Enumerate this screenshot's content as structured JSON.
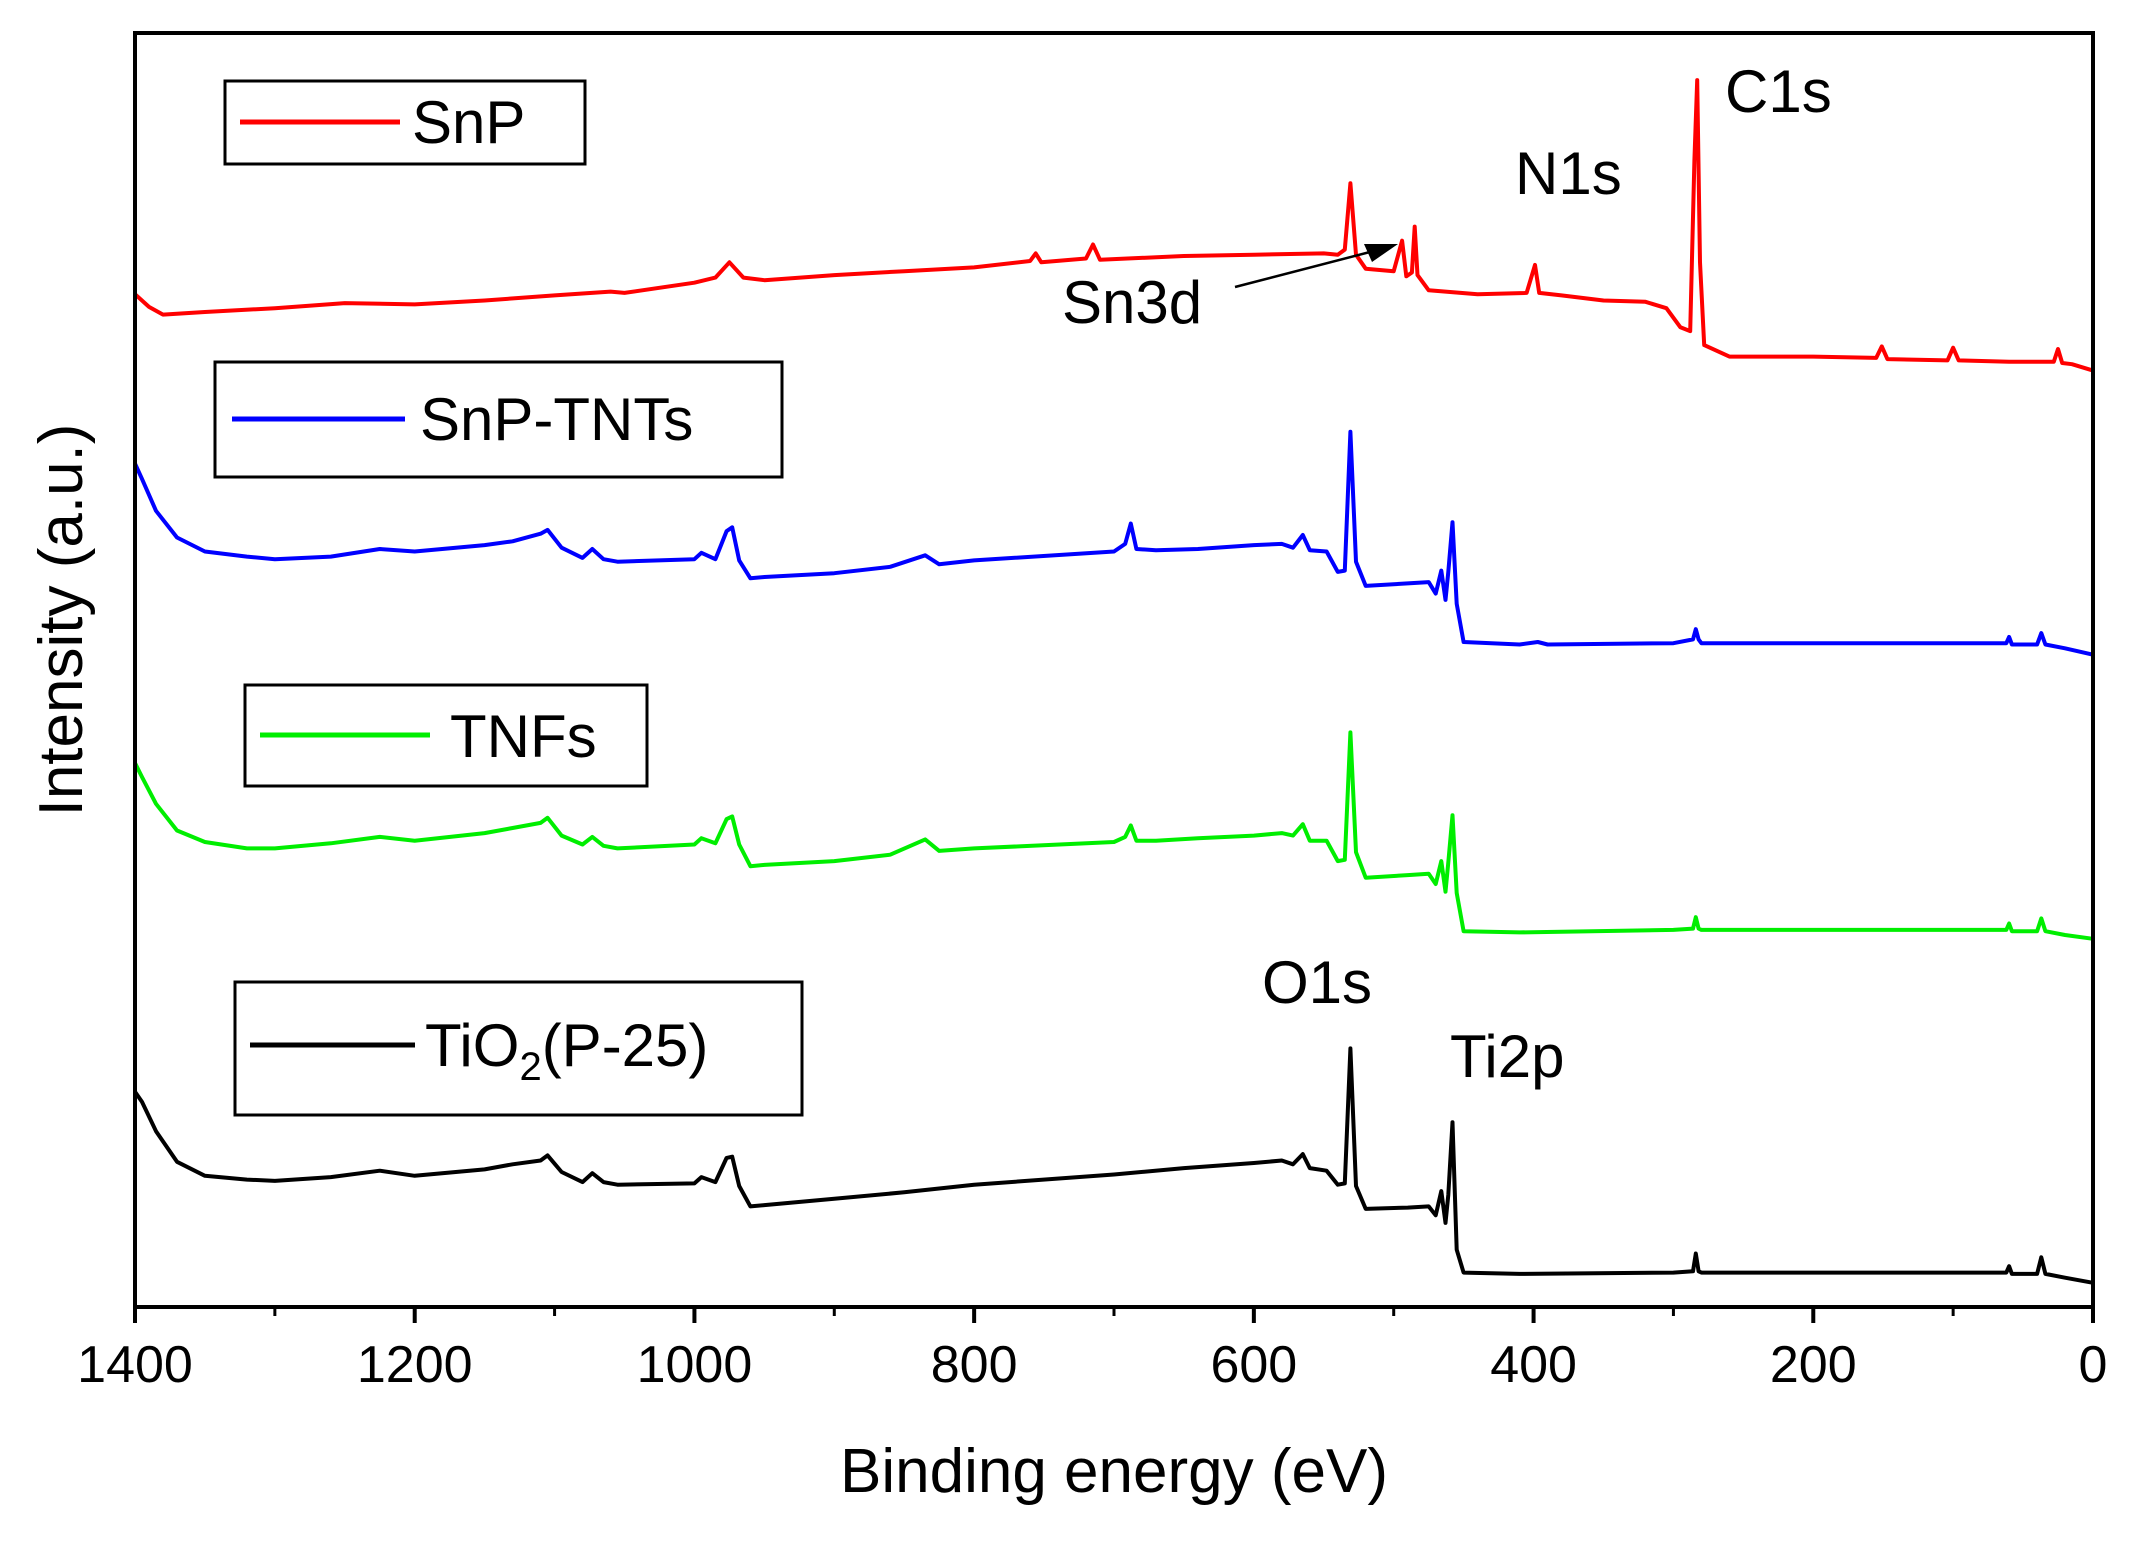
{
  "chart_data": {
    "type": "line",
    "title": "",
    "xlabel": "Binding energy (eV)",
    "ylabel": "Intensity (a.u.)",
    "xlim": [
      1400,
      0
    ],
    "x_reversed": true,
    "x_ticks": [
      1400,
      1200,
      1000,
      800,
      600,
      400,
      200,
      0
    ],
    "x_tick_labels": [
      "1400",
      "1200",
      "1000",
      "800",
      "600",
      "400",
      "200",
      "0"
    ],
    "y_ticks_shown": false,
    "grid": false,
    "ylim": [
      0,
      100
    ],
    "series": [
      {
        "name": "SnP",
        "color": "#ff0000",
        "points": [
          [
            1400,
            79.5
          ],
          [
            1390,
            78.5
          ],
          [
            1380,
            77.9
          ],
          [
            1350,
            78.1
          ],
          [
            1300,
            78.4
          ],
          [
            1250,
            78.8
          ],
          [
            1200,
            78.7
          ],
          [
            1150,
            79.0
          ],
          [
            1100,
            79.4
          ],
          [
            1060,
            79.7
          ],
          [
            1050,
            79.6
          ],
          [
            1000,
            80.4
          ],
          [
            985,
            80.8
          ],
          [
            975,
            82.0
          ],
          [
            965,
            80.8
          ],
          [
            950,
            80.6
          ],
          [
            900,
            81.0
          ],
          [
            850,
            81.3
          ],
          [
            800,
            81.6
          ],
          [
            760,
            82.1
          ],
          [
            756,
            82.7
          ],
          [
            752,
            82.0
          ],
          [
            720,
            82.3
          ],
          [
            715,
            83.4
          ],
          [
            710,
            82.2
          ],
          [
            650,
            82.5
          ],
          [
            600,
            82.6
          ],
          [
            550,
            82.7
          ],
          [
            540,
            82.6
          ],
          [
            535,
            83.0
          ],
          [
            531,
            88.2
          ],
          [
            527,
            82.6
          ],
          [
            520,
            81.5
          ],
          [
            500,
            81.3
          ],
          [
            494,
            83.7
          ],
          [
            491,
            80.9
          ],
          [
            487,
            81.2
          ],
          [
            485,
            84.8
          ],
          [
            483,
            81.0
          ],
          [
            475,
            79.8
          ],
          [
            440,
            79.5
          ],
          [
            405,
            79.6
          ],
          [
            399,
            81.8
          ],
          [
            396,
            79.6
          ],
          [
            380,
            79.4
          ],
          [
            350,
            79.0
          ],
          [
            320,
            78.9
          ],
          [
            305,
            78.4
          ],
          [
            295,
            76.9
          ],
          [
            288,
            76.6
          ],
          [
            285,
            90.0
          ],
          [
            283,
            96.3
          ],
          [
            281,
            82.0
          ],
          [
            278,
            75.5
          ],
          [
            260,
            74.6
          ],
          [
            200,
            74.6
          ],
          [
            155,
            74.5
          ],
          [
            151,
            75.4
          ],
          [
            147,
            74.4
          ],
          [
            104,
            74.3
          ],
          [
            100,
            75.3
          ],
          [
            96,
            74.3
          ],
          [
            60,
            74.2
          ],
          [
            28,
            74.2
          ],
          [
            25,
            75.2
          ],
          [
            22,
            74.1
          ],
          [
            15,
            74.0
          ],
          [
            0,
            73.5
          ]
        ]
      },
      {
        "name": "SnP-TNTs",
        "color": "#0000ff",
        "points": [
          [
            1400,
            66.2
          ],
          [
            1395,
            65.0
          ],
          [
            1385,
            62.5
          ],
          [
            1370,
            60.4
          ],
          [
            1350,
            59.3
          ],
          [
            1320,
            58.9
          ],
          [
            1300,
            58.7
          ],
          [
            1260,
            58.9
          ],
          [
            1225,
            59.5
          ],
          [
            1200,
            59.3
          ],
          [
            1150,
            59.8
          ],
          [
            1130,
            60.1
          ],
          [
            1110,
            60.7
          ],
          [
            1105,
            61.0
          ],
          [
            1095,
            59.6
          ],
          [
            1080,
            58.8
          ],
          [
            1073,
            59.5
          ],
          [
            1065,
            58.7
          ],
          [
            1055,
            58.5
          ],
          [
            1000,
            58.7
          ],
          [
            995,
            59.2
          ],
          [
            985,
            58.7
          ],
          [
            977,
            60.9
          ],
          [
            973,
            61.2
          ],
          [
            968,
            58.6
          ],
          [
            960,
            57.2
          ],
          [
            950,
            57.3
          ],
          [
            900,
            57.6
          ],
          [
            860,
            58.1
          ],
          [
            835,
            59.0
          ],
          [
            825,
            58.3
          ],
          [
            800,
            58.6
          ],
          [
            700,
            59.3
          ],
          [
            692,
            59.9
          ],
          [
            688,
            61.5
          ],
          [
            684,
            59.5
          ],
          [
            670,
            59.4
          ],
          [
            640,
            59.5
          ],
          [
            600,
            59.8
          ],
          [
            580,
            59.9
          ],
          [
            572,
            59.6
          ],
          [
            565,
            60.6
          ],
          [
            560,
            59.4
          ],
          [
            548,
            59.3
          ],
          [
            540,
            57.7
          ],
          [
            535,
            57.8
          ],
          [
            531,
            68.7
          ],
          [
            527,
            58.5
          ],
          [
            520,
            56.6
          ],
          [
            490,
            56.8
          ],
          [
            475,
            56.9
          ],
          [
            470,
            56.0
          ],
          [
            466,
            57.8
          ],
          [
            463,
            55.5
          ],
          [
            461,
            57.7
          ],
          [
            458,
            61.6
          ],
          [
            455,
            55.2
          ],
          [
            450,
            52.2
          ],
          [
            410,
            52.0
          ],
          [
            397,
            52.2
          ],
          [
            390,
            52.0
          ],
          [
            300,
            52.1
          ],
          [
            286,
            52.4
          ],
          [
            284,
            53.2
          ],
          [
            282,
            52.4
          ],
          [
            280,
            52.1
          ],
          [
            200,
            52.1
          ],
          [
            100,
            52.1
          ],
          [
            62,
            52.1
          ],
          [
            60,
            52.6
          ],
          [
            58,
            52.0
          ],
          [
            40,
            52.0
          ],
          [
            37,
            52.9
          ],
          [
            34,
            52.0
          ],
          [
            20,
            51.7
          ],
          [
            0,
            51.2
          ]
        ]
      },
      {
        "name": "TNFs",
        "color": "#00ee00",
        "points": [
          [
            1400,
            42.7
          ],
          [
            1395,
            41.6
          ],
          [
            1385,
            39.5
          ],
          [
            1370,
            37.4
          ],
          [
            1350,
            36.5
          ],
          [
            1320,
            36.0
          ],
          [
            1300,
            36.0
          ],
          [
            1260,
            36.4
          ],
          [
            1225,
            36.9
          ],
          [
            1200,
            36.6
          ],
          [
            1150,
            37.2
          ],
          [
            1130,
            37.6
          ],
          [
            1110,
            38.0
          ],
          [
            1105,
            38.4
          ],
          [
            1095,
            37.0
          ],
          [
            1080,
            36.3
          ],
          [
            1073,
            36.9
          ],
          [
            1065,
            36.2
          ],
          [
            1055,
            36.0
          ],
          [
            1000,
            36.3
          ],
          [
            995,
            36.8
          ],
          [
            985,
            36.4
          ],
          [
            977,
            38.3
          ],
          [
            973,
            38.5
          ],
          [
            968,
            36.3
          ],
          [
            960,
            34.6
          ],
          [
            950,
            34.7
          ],
          [
            900,
            35.0
          ],
          [
            860,
            35.5
          ],
          [
            835,
            36.7
          ],
          [
            825,
            35.8
          ],
          [
            800,
            36.0
          ],
          [
            700,
            36.5
          ],
          [
            692,
            36.9
          ],
          [
            688,
            37.8
          ],
          [
            684,
            36.6
          ],
          [
            670,
            36.6
          ],
          [
            640,
            36.8
          ],
          [
            600,
            37.0
          ],
          [
            580,
            37.2
          ],
          [
            572,
            37.0
          ],
          [
            565,
            37.9
          ],
          [
            560,
            36.6
          ],
          [
            548,
            36.6
          ],
          [
            540,
            35.0
          ],
          [
            535,
            35.1
          ],
          [
            531,
            45.1
          ],
          [
            527,
            35.7
          ],
          [
            520,
            33.7
          ],
          [
            490,
            33.9
          ],
          [
            475,
            34.0
          ],
          [
            470,
            33.2
          ],
          [
            466,
            35.0
          ],
          [
            463,
            32.6
          ],
          [
            461,
            34.9
          ],
          [
            458,
            38.6
          ],
          [
            455,
            32.5
          ],
          [
            450,
            29.5
          ],
          [
            410,
            29.4
          ],
          [
            300,
            29.6
          ],
          [
            286,
            29.7
          ],
          [
            284,
            30.6
          ],
          [
            282,
            29.7
          ],
          [
            280,
            29.6
          ],
          [
            200,
            29.6
          ],
          [
            100,
            29.6
          ],
          [
            62,
            29.6
          ],
          [
            60,
            30.1
          ],
          [
            58,
            29.5
          ],
          [
            40,
            29.5
          ],
          [
            37,
            30.5
          ],
          [
            34,
            29.5
          ],
          [
            20,
            29.2
          ],
          [
            0,
            28.9
          ]
        ]
      },
      {
        "name": "TiO2(P-25)",
        "color": "#000000",
        "points": [
          [
            1400,
            16.9
          ],
          [
            1395,
            16.1
          ],
          [
            1385,
            13.8
          ],
          [
            1370,
            11.4
          ],
          [
            1350,
            10.3
          ],
          [
            1320,
            10.0
          ],
          [
            1300,
            9.9
          ],
          [
            1260,
            10.2
          ],
          [
            1225,
            10.7
          ],
          [
            1200,
            10.3
          ],
          [
            1150,
            10.8
          ],
          [
            1130,
            11.2
          ],
          [
            1110,
            11.5
          ],
          [
            1105,
            11.9
          ],
          [
            1095,
            10.6
          ],
          [
            1080,
            9.8
          ],
          [
            1073,
            10.5
          ],
          [
            1065,
            9.8
          ],
          [
            1055,
            9.6
          ],
          [
            1000,
            9.7
          ],
          [
            995,
            10.2
          ],
          [
            985,
            9.8
          ],
          [
            977,
            11.7
          ],
          [
            973,
            11.8
          ],
          [
            968,
            9.5
          ],
          [
            960,
            7.9
          ],
          [
            950,
            8.0
          ],
          [
            900,
            8.5
          ],
          [
            850,
            9.0
          ],
          [
            800,
            9.6
          ],
          [
            700,
            10.4
          ],
          [
            650,
            10.9
          ],
          [
            600,
            11.3
          ],
          [
            580,
            11.5
          ],
          [
            572,
            11.2
          ],
          [
            565,
            12.0
          ],
          [
            560,
            10.9
          ],
          [
            548,
            10.7
          ],
          [
            540,
            9.6
          ],
          [
            535,
            9.7
          ],
          [
            531,
            20.3
          ],
          [
            527,
            9.5
          ],
          [
            520,
            7.7
          ],
          [
            490,
            7.8
          ],
          [
            475,
            7.9
          ],
          [
            470,
            7.2
          ],
          [
            466,
            9.1
          ],
          [
            463,
            6.6
          ],
          [
            461,
            8.8
          ],
          [
            458,
            14.5
          ],
          [
            455,
            4.5
          ],
          [
            450,
            2.7
          ],
          [
            410,
            2.6
          ],
          [
            300,
            2.7
          ],
          [
            286,
            2.8
          ],
          [
            284,
            4.2
          ],
          [
            282,
            2.8
          ],
          [
            280,
            2.7
          ],
          [
            200,
            2.7
          ],
          [
            100,
            2.7
          ],
          [
            62,
            2.7
          ],
          [
            60,
            3.2
          ],
          [
            58,
            2.6
          ],
          [
            40,
            2.6
          ],
          [
            37,
            3.9
          ],
          [
            34,
            2.6
          ],
          [
            20,
            2.3
          ],
          [
            0,
            1.9
          ]
        ]
      }
    ],
    "legends": [
      {
        "label": "SnP",
        "color": "#ff0000"
      },
      {
        "label": "SnP-TNTs",
        "color": "#0000ff"
      },
      {
        "label": "TNFs",
        "color": "#00ee00"
      },
      {
        "label_main": "TiO",
        "label_sub": "2",
        "label_rest": "(P-25)",
        "color": "#000000"
      }
    ],
    "annotations": {
      "c1s": "C1s",
      "n1s": "N1s",
      "sn3d": "Sn3d",
      "o1s": "O1s",
      "ti2p": "Ti2p"
    }
  }
}
